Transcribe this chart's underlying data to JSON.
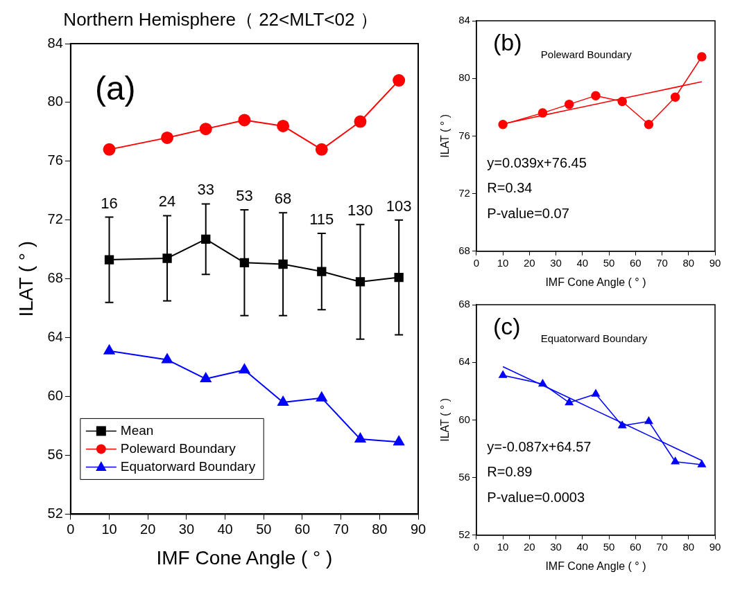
{
  "chart_data": [
    {
      "type": "line",
      "title": "Northern Hemisphere（ 22<MLT<02 ）",
      "xlabel": "IMF Cone Angle ( ° )",
      "ylabel": "ILAT ( ° )",
      "xlim": [
        0,
        90
      ],
      "xticks": [
        0,
        10,
        20,
        30,
        40,
        50,
        60,
        70,
        80,
        90
      ],
      "ylim": [
        52,
        84
      ],
      "yticks": [
        52,
        56,
        60,
        64,
        68,
        72,
        76,
        80,
        84
      ],
      "grid": false,
      "legend": "bottom left",
      "x": [
        10,
        25,
        35,
        45,
        55,
        65,
        75,
        85
      ],
      "annotations": [
        "(a)",
        "16",
        "24",
        "33",
        "53",
        "68",
        "115",
        "130",
        "103"
      ],
      "series": [
        {
          "name": "Mean",
          "color": "#000000",
          "marker": "square",
          "values": [
            69.3,
            69.4,
            70.7,
            69.1,
            69.0,
            68.5,
            67.8,
            68.1
          ],
          "errors": [
            2.9,
            2.9,
            2.4,
            3.6,
            3.5,
            2.6,
            3.9,
            3.9
          ]
        },
        {
          "name": "Poleward Boundary",
          "color": "#ff0000",
          "marker": "circle",
          "values": [
            76.8,
            77.6,
            78.2,
            78.8,
            78.4,
            76.8,
            78.7,
            81.5
          ]
        },
        {
          "name": "Equatorward Boundary",
          "color": "#0000ff",
          "marker": "triangle",
          "values": [
            63.1,
            62.5,
            61.2,
            61.8,
            59.6,
            59.9,
            57.1,
            56.9
          ]
        }
      ]
    },
    {
      "type": "line",
      "xlabel": "IMF Cone Angle ( ° )",
      "ylabel": "ILAT ( ° )",
      "xlim": [
        0,
        90
      ],
      "xticks": [
        0,
        10,
        20,
        30,
        40,
        50,
        60,
        70,
        80,
        90
      ],
      "ylim": [
        68,
        84
      ],
      "yticks": [
        68,
        72,
        76,
        80,
        84
      ],
      "grid": false,
      "x": [
        10,
        25,
        35,
        45,
        55,
        65,
        75,
        85
      ],
      "annotations": [
        "(b)",
        "Poleward Boundary",
        "y=0.039x+76.45",
        "R=0.34",
        "P-value=0.07"
      ],
      "series": [
        {
          "color": "#ff0000",
          "marker": "circle",
          "values": [
            76.8,
            77.6,
            78.2,
            78.8,
            78.4,
            76.8,
            78.7,
            81.5
          ]
        },
        {
          "color": "#ff0000",
          "marker": "none",
          "values": [
            76.84,
            77.43,
            77.82,
            78.21,
            78.6,
            78.99,
            79.38,
            79.77
          ]
        }
      ]
    },
    {
      "type": "line",
      "xlabel": "IMF Cone Angle ( ° )",
      "ylabel": "ILAT ( ° )",
      "xlim": [
        0,
        90
      ],
      "xticks": [
        0,
        10,
        20,
        30,
        40,
        50,
        60,
        70,
        80,
        90
      ],
      "ylim": [
        52,
        68
      ],
      "yticks": [
        52,
        56,
        60,
        64,
        68
      ],
      "grid": false,
      "x": [
        10,
        25,
        35,
        45,
        55,
        65,
        75,
        85
      ],
      "annotations": [
        "(c)",
        "Equatorward Boundary",
        "y=-0.087x+64.57",
        "R=0.89",
        "P-value=0.0003"
      ],
      "series": [
        {
          "color": "#0000ff",
          "marker": "triangle",
          "values": [
            63.1,
            62.5,
            61.2,
            61.8,
            59.6,
            59.9,
            57.1,
            56.9
          ]
        },
        {
          "color": "#0000ff",
          "marker": "none",
          "values": [
            63.7,
            62.4,
            61.53,
            60.65,
            59.79,
            58.92,
            58.05,
            57.18
          ]
        }
      ]
    }
  ]
}
